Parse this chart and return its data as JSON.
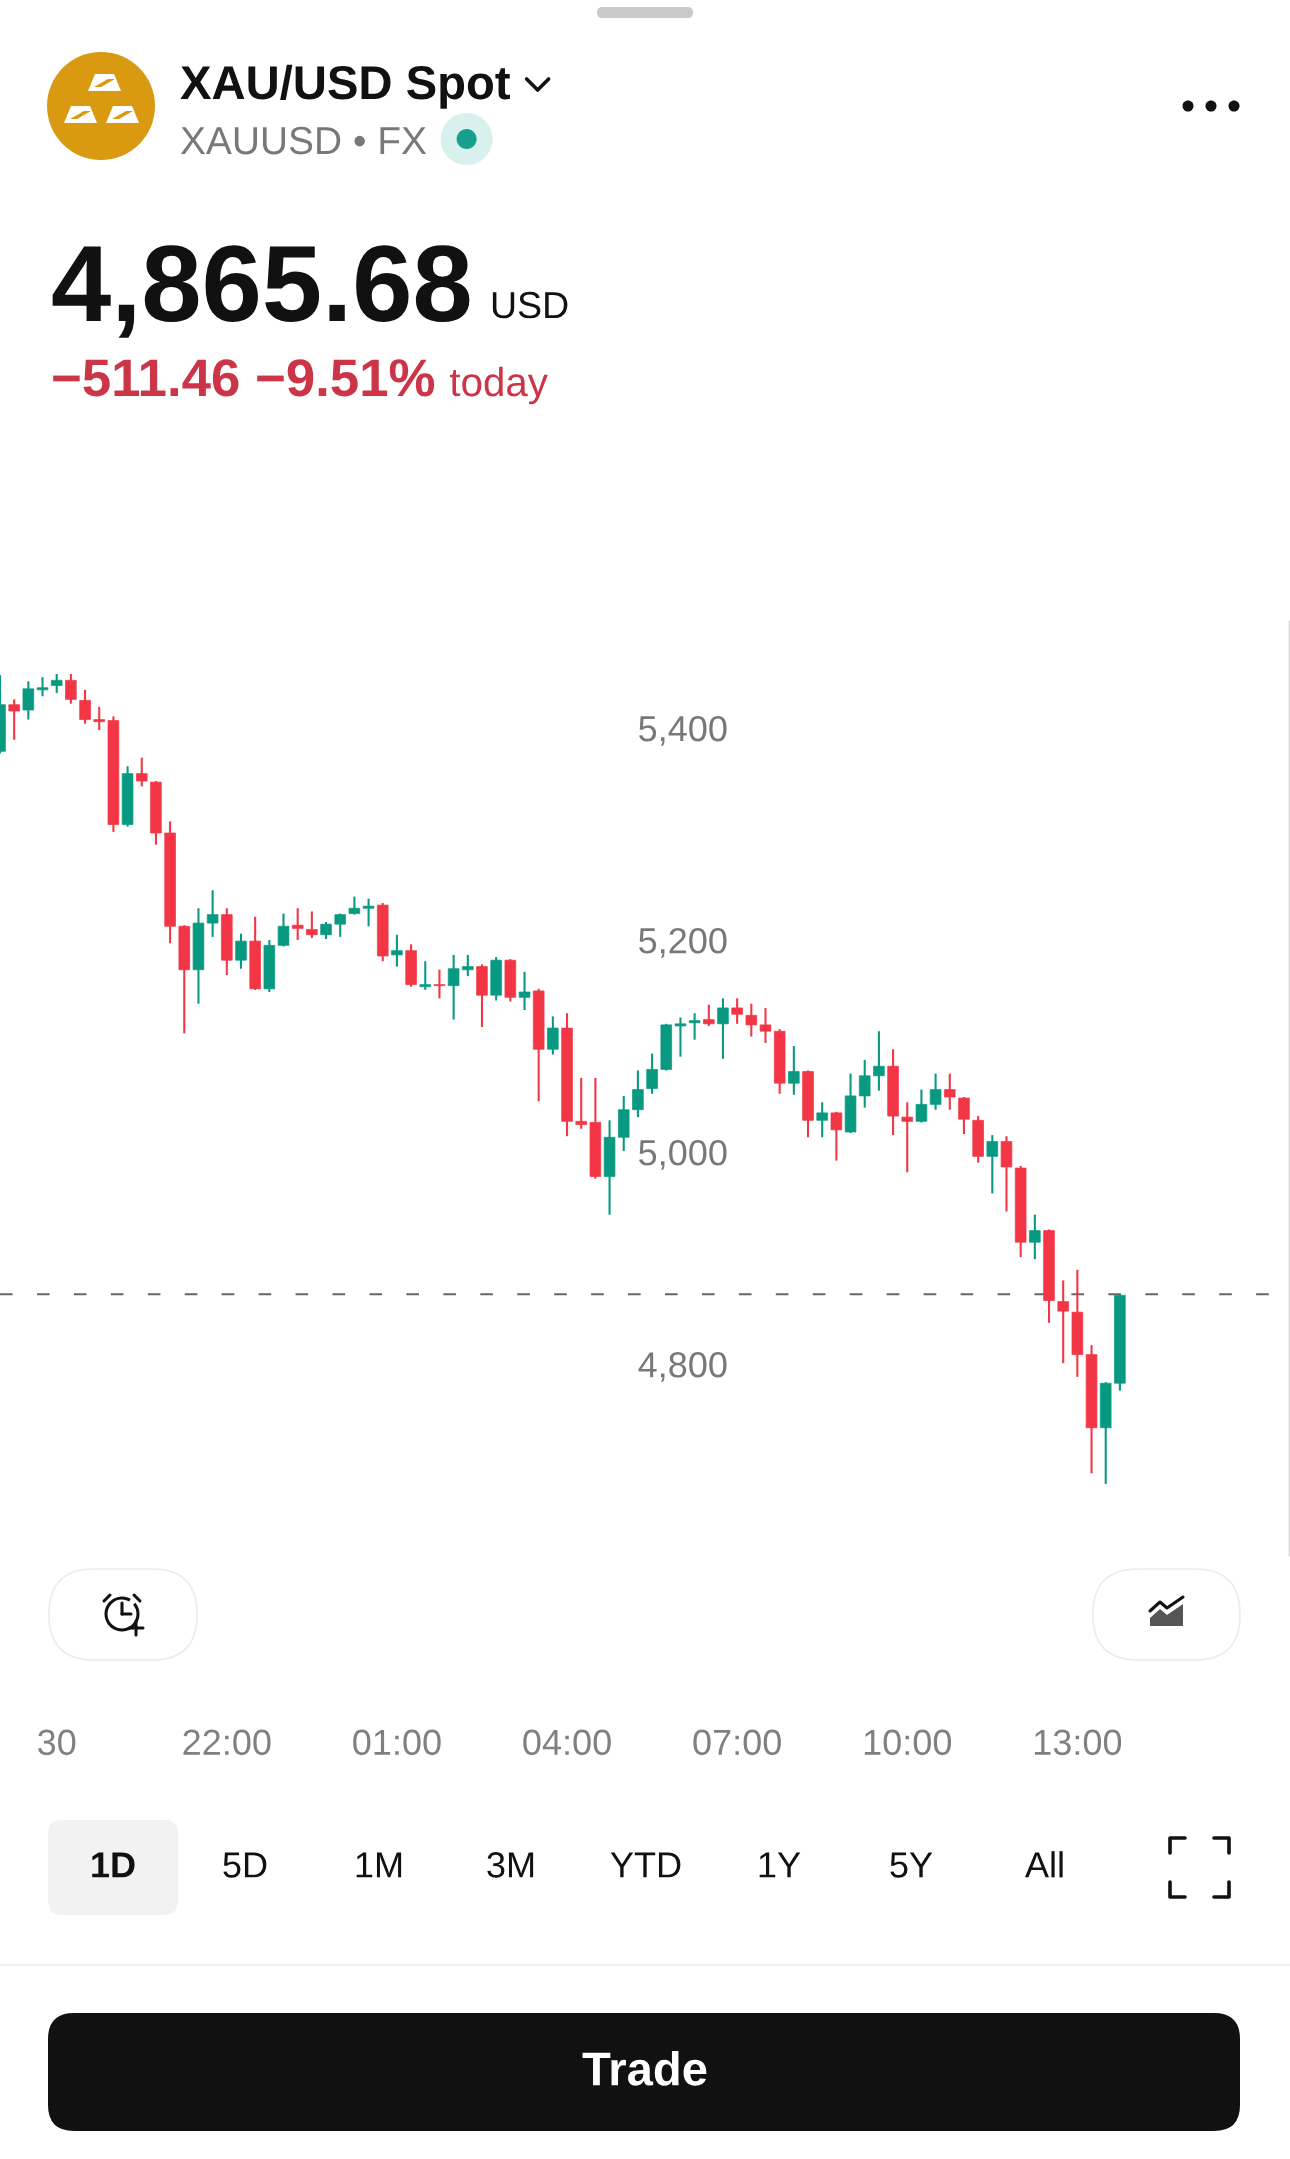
{
  "chart_data": {
    "type": "candlestick",
    "title": "XAU/USD Spot",
    "subtitle": "XAUUSD • FX",
    "annotations": [
      "4,865.68",
      "USD",
      "−511.46 −9.51%",
      "today",
      "1D",
      "5D",
      "1M",
      "3M",
      "YTD",
      "1Y",
      "5Y",
      "All",
      "Trade"
    ],
    "categories": [
      null,
      null,
      null,
      null,
      "30",
      null,
      null,
      null,
      null,
      null,
      null,
      null,
      null,
      null,
      null,
      null,
      "22:00",
      null,
      null,
      null,
      null,
      null,
      null,
      null,
      null,
      null,
      null,
      null,
      "01:00",
      null,
      null,
      null,
      null,
      null,
      null,
      null,
      null,
      null,
      null,
      null,
      "04:00",
      null,
      null,
      null,
      null,
      null,
      null,
      null,
      null,
      null,
      null,
      null,
      "07:00",
      null,
      null,
      null,
      null,
      null,
      null,
      null,
      null,
      null,
      null,
      null,
      "10:00",
      null,
      null,
      null,
      null,
      null,
      null,
      null,
      null,
      null,
      null,
      null,
      "13:00",
      null,
      null,
      null,
      null,
      null,
      null,
      null,
      null,
      null,
      null,
      null,
      null,
      null,
      null,
      null
    ],
    "ohlc": [
      [
        5378,
        5450,
        5376,
        5422
      ],
      [
        5422,
        5427,
        5389,
        5416
      ],
      [
        5417,
        5444,
        5408,
        5437
      ],
      [
        5436,
        5448,
        5430,
        5438
      ],
      [
        5440,
        5451,
        5433,
        5445
      ],
      [
        5445,
        5451,
        5423,
        5427
      ],
      [
        5426,
        5436,
        5404,
        5408
      ],
      [
        5408,
        5420,
        5398,
        5406
      ],
      [
        5407,
        5411,
        5302,
        5309
      ],
      [
        5309,
        5364,
        5307,
        5357
      ],
      [
        5357,
        5372,
        5345,
        5350
      ],
      [
        5349,
        5350,
        5290,
        5301
      ],
      [
        5301,
        5312,
        5197,
        5213
      ],
      [
        5213,
        5214,
        5112,
        5172
      ],
      [
        5172,
        5230,
        5140,
        5216
      ],
      [
        5216,
        5247,
        5203,
        5224
      ],
      [
        5224,
        5230,
        5167,
        5181
      ],
      [
        5181,
        5206,
        5173,
        5199
      ],
      [
        5199,
        5222,
        5153,
        5154
      ],
      [
        5154,
        5200,
        5151,
        5195
      ],
      [
        5195,
        5225,
        5194,
        5213
      ],
      [
        5214,
        5230,
        5200,
        5211
      ],
      [
        5210,
        5227,
        5202,
        5205
      ],
      [
        5205,
        5217,
        5201,
        5215
      ],
      [
        5215,
        5225,
        5203,
        5224
      ],
      [
        5225,
        5241,
        5224,
        5230
      ],
      [
        5230,
        5239,
        5213,
        5232
      ],
      [
        5233,
        5235,
        5180,
        5185
      ],
      [
        5186,
        5205,
        5175,
        5190
      ],
      [
        5190,
        5196,
        5156,
        5158
      ],
      [
        5156,
        5180,
        5153,
        5158
      ],
      [
        5158,
        5172,
        5145,
        5157
      ],
      [
        5157,
        5186,
        5125,
        5173
      ],
      [
        5172,
        5186,
        5166,
        5175
      ],
      [
        5175,
        5177,
        5118,
        5148
      ],
      [
        5148,
        5184,
        5143,
        5181
      ],
      [
        5181,
        5182,
        5142,
        5146
      ],
      [
        5146,
        5170,
        5134,
        5151
      ],
      [
        5152,
        5154,
        5048,
        5097
      ],
      [
        5097,
        5128,
        5092,
        5117
      ],
      [
        5117,
        5131,
        5015,
        5029
      ],
      [
        5029,
        5070,
        5022,
        5026
      ],
      [
        5028,
        5070,
        4975,
        4977
      ],
      [
        4977,
        5030,
        4941,
        5014
      ],
      [
        5014,
        5053,
        5001,
        5040
      ],
      [
        5040,
        5077,
        5033,
        5059
      ],
      [
        5060,
        5093,
        5055,
        5078
      ],
      [
        5078,
        5121,
        5077,
        5120
      ],
      [
        5119,
        5127,
        5090,
        5121
      ],
      [
        5122,
        5131,
        5106,
        5124
      ],
      [
        5125,
        5139,
        5119,
        5121
      ],
      [
        5121,
        5145,
        5088,
        5136
      ],
      [
        5136,
        5145,
        5121,
        5130
      ],
      [
        5129,
        5140,
        5109,
        5120
      ],
      [
        5120,
        5136,
        5103,
        5114
      ],
      [
        5114,
        5116,
        5055,
        5065
      ],
      [
        5065,
        5100,
        5054,
        5076
      ],
      [
        5076,
        5077,
        5014,
        5030
      ],
      [
        5030,
        5047,
        5014,
        5037
      ],
      [
        5037,
        5038,
        4992,
        5021
      ],
      [
        5019,
        5074,
        5018,
        5053
      ],
      [
        5053,
        5087,
        5042,
        5072
      ],
      [
        5072,
        5114,
        5058,
        5081
      ],
      [
        5081,
        5097,
        5016,
        5034
      ],
      [
        5033,
        5047,
        4981,
        5029
      ],
      [
        5029,
        5059,
        5028,
        5045
      ],
      [
        5045,
        5074,
        5040,
        5059
      ],
      [
        5059,
        5074,
        5040,
        5052
      ],
      [
        5051,
        5052,
        5017,
        5031
      ],
      [
        5030,
        5034,
        4990,
        4996
      ],
      [
        4996,
        5016,
        4961,
        5010
      ],
      [
        5010,
        5015,
        4944,
        4986
      ],
      [
        4985,
        4987,
        4901,
        4915
      ],
      [
        4915,
        4941,
        4899,
        4926
      ],
      [
        4926,
        4927,
        4839,
        4860
      ],
      [
        4859,
        4879,
        4801,
        4850
      ],
      [
        4849,
        4889,
        4788,
        4809
      ],
      [
        4809,
        4818,
        4697,
        4740
      ],
      [
        4740,
        4783,
        4687,
        4782
      ],
      [
        4782,
        4866,
        4775,
        4865
      ],
      null,
      null,
      null,
      null,
      null,
      null,
      null,
      null,
      null,
      null,
      null,
      null
    ],
    "colors": [
      "#089981",
      "#f23645",
      "#089981",
      "#089981",
      "#089981",
      "#f23645",
      "#f23645",
      "#f23645",
      "#f23645",
      "#089981",
      "#f23645",
      "#f23645",
      "#f23645",
      "#f23645",
      "#089981",
      "#089981",
      "#f23645",
      "#089981",
      "#f23645",
      "#089981",
      "#089981",
      "#f23645",
      "#f23645",
      "#089981",
      "#089981",
      "#089981",
      "#089981",
      "#f23645",
      "#089981",
      "#f23645",
      "#089981",
      "#f23645",
      "#089981",
      "#089981",
      "#f23645",
      "#089981",
      "#f23645",
      "#089981",
      "#f23645",
      "#089981",
      "#f23645",
      "#f23645",
      "#f23645",
      "#089981",
      "#089981",
      "#089981",
      "#089981",
      "#089981",
      "#089981",
      "#089981",
      "#f23645",
      "#089981",
      "#f23645",
      "#f23645",
      "#f23645",
      "#f23645",
      "#089981",
      "#f23645",
      "#089981",
      "#f23645",
      "#089981",
      "#089981",
      "#089981",
      "#f23645",
      "#f23645",
      "#089981",
      "#089981",
      "#f23645",
      "#f23645",
      "#f23645",
      "#089981",
      "#f23645",
      "#f23645",
      "#089981",
      "#f23645",
      "#f23645",
      "#f23645",
      "#f23645",
      "#089981",
      "#089981",
      null,
      null,
      null,
      null,
      null,
      null,
      null,
      null,
      null,
      null,
      null,
      null
    ],
    "ylim": [
      4620,
      5500
    ],
    "yticks": [
      {
        "value": 4800,
        "label": "4,800"
      },
      {
        "value": 5000,
        "label": "5,000"
      },
      {
        "value": 5200,
        "label": "5,200"
      },
      {
        "value": 5400,
        "label": "5,400"
      }
    ],
    "ref_lines": [
      {
        "axis": "y",
        "value": 4866,
        "color": "#666666",
        "line_style": "dashed"
      }
    ]
  }
}
